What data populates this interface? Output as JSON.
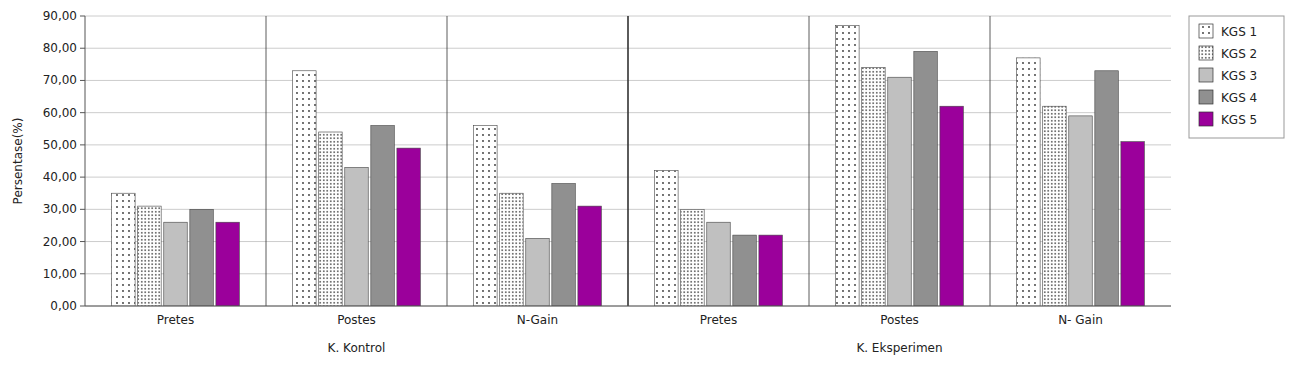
{
  "chart_data": {
    "type": "bar",
    "y_label": "Persentase(%)",
    "categories": [
      "Pretes",
      "Postes",
      "N-Gain",
      "Pretes",
      "Postes",
      "N- Gain"
    ],
    "annotations": [
      "K. Kontrol",
      "K. Eksperimen"
    ],
    "series": [
      {
        "name": "KGS 1",
        "color": "#ffffff",
        "values": [
          35,
          73,
          56,
          42,
          87,
          77
        ]
      },
      {
        "name": "KGS 2",
        "color": "#ffffff",
        "values": [
          31,
          54,
          35,
          30,
          74,
          62
        ]
      },
      {
        "name": "KGS 3",
        "color": "#c0c0c0",
        "values": [
          26,
          43,
          21,
          26,
          71,
          59
        ]
      },
      {
        "name": "KGS 4",
        "color": "#909090",
        "values": [
          30,
          56,
          38,
          22,
          79,
          73
        ]
      },
      {
        "name": "KGS 5",
        "color": "#9b009b",
        "values": [
          26,
          49,
          31,
          22,
          62,
          51
        ]
      }
    ],
    "ylim": [
      0,
      90
    ],
    "yticks": [
      {
        "value": 0,
        "label": "0,00"
      },
      {
        "value": 10,
        "label": "10,00"
      },
      {
        "value": 20,
        "label": "20,00"
      },
      {
        "value": 30,
        "label": "30,00"
      },
      {
        "value": 40,
        "label": "40,00"
      },
      {
        "value": 50,
        "label": "50,00"
      },
      {
        "value": 60,
        "label": "60,00"
      },
      {
        "value": 70,
        "label": "70,00"
      },
      {
        "value": 80,
        "label": "80,00"
      },
      {
        "value": 90,
        "label": "90,00"
      }
    ],
    "grid": true,
    "legend": "upper right"
  }
}
